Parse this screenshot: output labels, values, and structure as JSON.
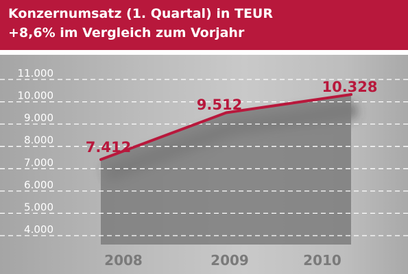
{
  "header": {
    "line1": "Konzernumsatz (1. Quartal) in TEUR",
    "line2": "+8,6% im Vergleich zum Vorjahr",
    "background_color": "#b8183c"
  },
  "chart_data": {
    "type": "area",
    "title": "Konzernumsatz (1. Quartal) in TEUR",
    "subtitle": "+8,6% im Vergleich zum Vorjahr",
    "categories": [
      "2008",
      "2009",
      "2010"
    ],
    "values": [
      7412,
      9512,
      10328
    ],
    "value_labels": [
      "7.412",
      "9.512",
      "10.328"
    ],
    "y_ticks": [
      4000,
      5000,
      6000,
      7000,
      8000,
      9000,
      10000,
      11000
    ],
    "y_tick_labels": [
      "4.000",
      "5.000",
      "6.000",
      "7.000",
      "8.000",
      "9.000",
      "10.000",
      "11.000"
    ],
    "ylim": [
      4000,
      11000
    ],
    "grid": true,
    "line_color": "#b8183c",
    "area_color": "#7d7d7d"
  }
}
